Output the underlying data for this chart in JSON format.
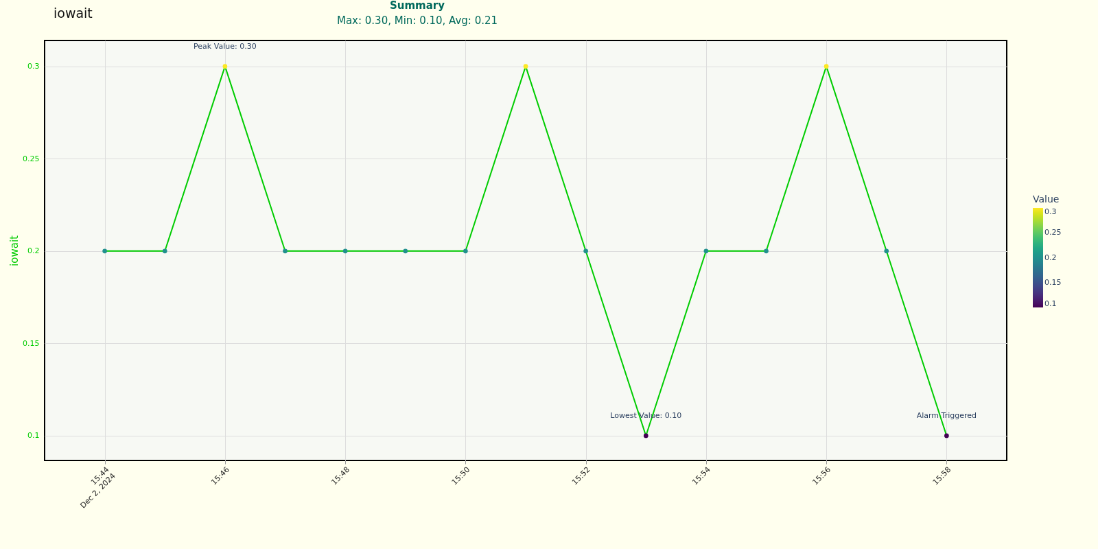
{
  "chart_data": {
    "type": "line",
    "title": "iowait",
    "ylabel": "iowait",
    "x": [
      "2024-12-02T15:44",
      "2024-12-02T15:45",
      "2024-12-02T15:46",
      "2024-12-02T15:47",
      "2024-12-02T15:48",
      "2024-12-02T15:49",
      "2024-12-02T15:50",
      "2024-12-02T15:51",
      "2024-12-02T15:52",
      "2024-12-02T15:53",
      "2024-12-02T15:54",
      "2024-12-02T15:55",
      "2024-12-02T15:56",
      "2024-12-02T15:57",
      "2024-12-02T15:58"
    ],
    "series": [
      {
        "color": "#00cc00",
        "values": [
          0.2,
          0.2,
          0.3,
          0.2,
          0.2,
          0.2,
          0.2,
          0.3,
          0.2,
          0.1,
          0.2,
          0.2,
          0.3,
          0.2,
          0.1
        ]
      }
    ],
    "legend_title": "Value",
    "clim": [
      0.1,
      0.3
    ],
    "cticks": [
      0.1,
      0.15,
      0.2,
      0.25,
      0.3
    ],
    "xlim": [
      "2024-12-02T15:43",
      "2024-12-02T15:59"
    ],
    "xticks": [
      {
        "value": "2024-12-02T15:44",
        "label": "15:44\nDec 2, 2024"
      },
      {
        "value": "2024-12-02T15:46",
        "label": "15:46"
      },
      {
        "value": "2024-12-02T15:48",
        "label": "15:48"
      },
      {
        "value": "2024-12-02T15:50",
        "label": "15:50"
      },
      {
        "value": "2024-12-02T15:52",
        "label": "15:52"
      },
      {
        "value": "2024-12-02T15:54",
        "label": "15:54"
      },
      {
        "value": "2024-12-02T15:56",
        "label": "15:56"
      },
      {
        "value": "2024-12-02T15:58",
        "label": "15:58"
      }
    ],
    "ylim": [
      0.0866,
      0.314
    ],
    "yticks": [
      0.1,
      0.15,
      0.2,
      0.25,
      0.3
    ],
    "grid": true,
    "marker": "circle",
    "line_style": "solid",
    "annotations": [
      {
        "text": "Peak Value: 0.30",
        "x": "2024-12-02T15:46",
        "y": 0.3
      },
      {
        "text": "Lowest Value: 0.10",
        "x": "2024-12-02T15:53",
        "y": 0.1
      },
      {
        "text": "Alarm Triggered",
        "x": "2024-12-02T15:58",
        "y": 0.1
      },
      "Summary",
      "Max: 0.30, Min: 0.10, Avg: 0.21"
    ]
  }
}
